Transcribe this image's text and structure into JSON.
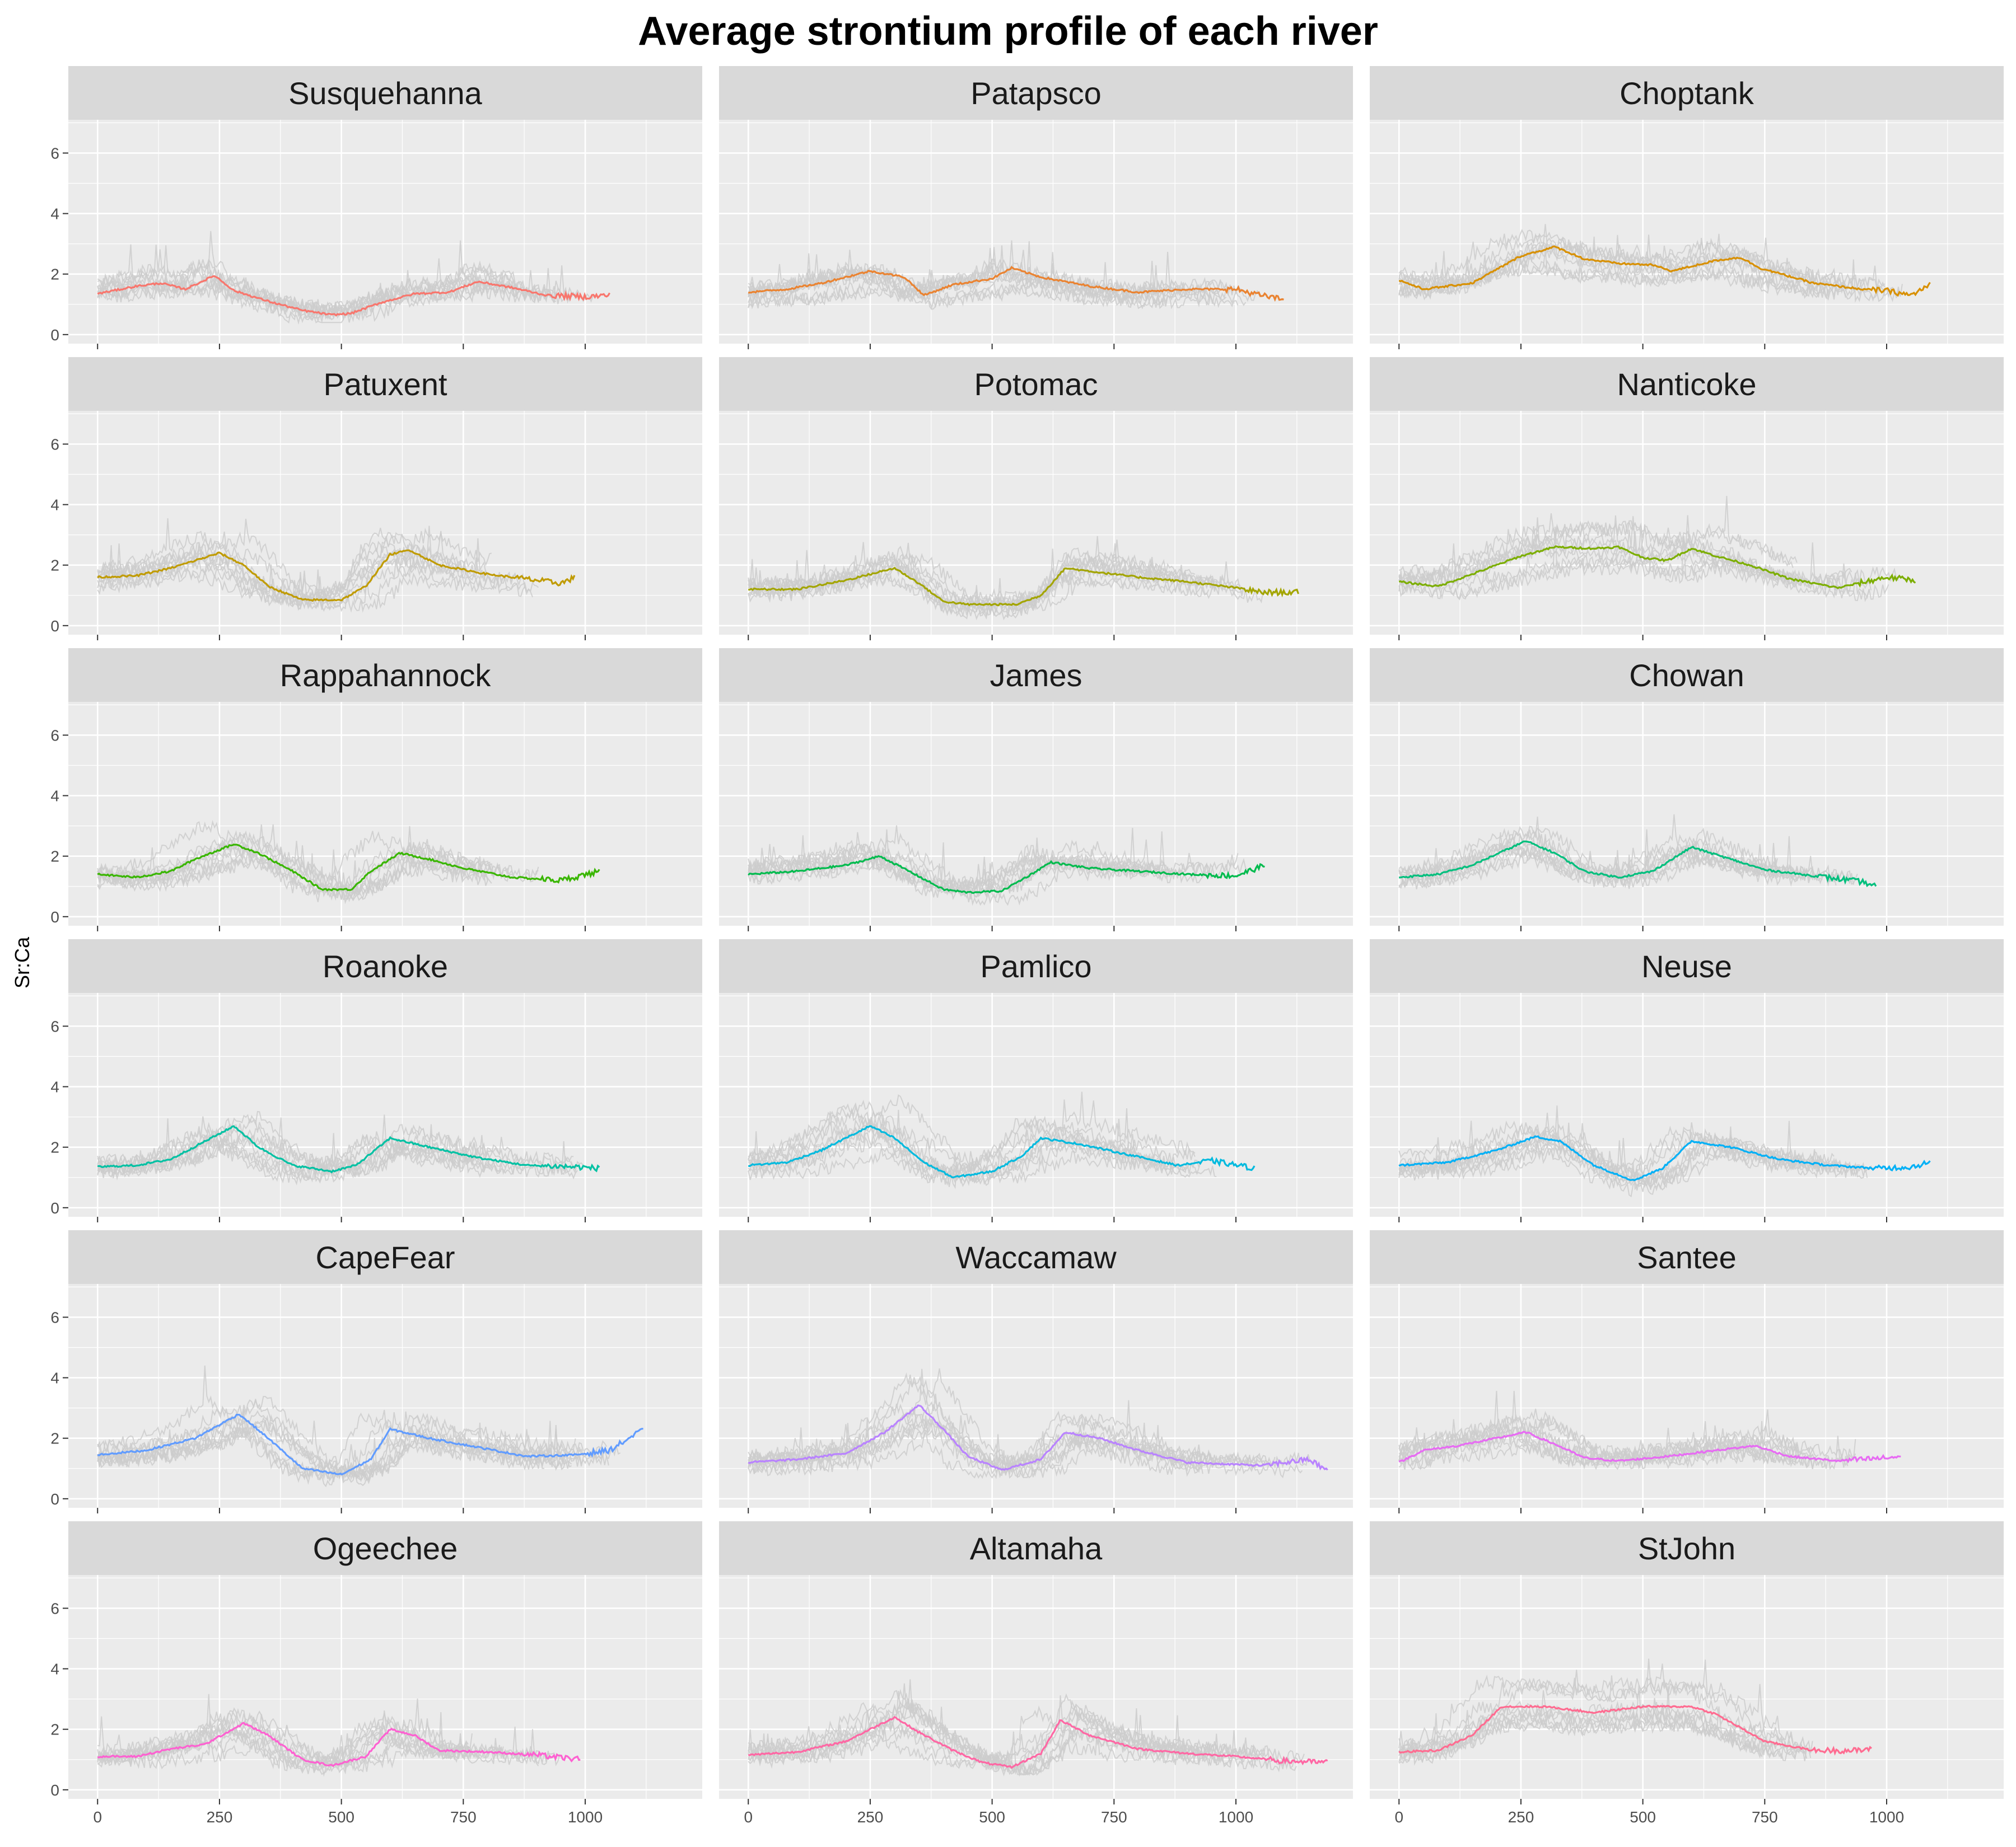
{
  "chart_data": {
    "type": "line",
    "title": "Average strontium profile of each river",
    "ylabel": "Sr:Ca",
    "xlabel": "",
    "xlim": [
      -60,
      1240
    ],
    "ylim": [
      -0.3,
      7.1
    ],
    "x_ticks": [
      0,
      250,
      500,
      750,
      1000
    ],
    "y_ticks": [
      0,
      2,
      4,
      6
    ],
    "grid": true,
    "background_series_color": "#cccccc",
    "panel_background": "#ebebeb",
    "strip_background": "#d9d9d9",
    "panels": [
      {
        "name": "Susquehanna",
        "color": "#F8766D",
        "xmax": 1050,
        "ymin": 0.4,
        "ymax": 3.5,
        "mean": [
          [
            0,
            1.35
          ],
          [
            80,
            1.6
          ],
          [
            130,
            1.7
          ],
          [
            180,
            1.5
          ],
          [
            240,
            1.95
          ],
          [
            280,
            1.45
          ],
          [
            350,
            1.1
          ],
          [
            420,
            0.8
          ],
          [
            480,
            0.65
          ],
          [
            520,
            0.7
          ],
          [
            580,
            1.05
          ],
          [
            650,
            1.35
          ],
          [
            720,
            1.4
          ],
          [
            780,
            1.75
          ],
          [
            850,
            1.55
          ],
          [
            920,
            1.3
          ],
          [
            1000,
            1.25
          ],
          [
            1050,
            1.3
          ]
        ]
      },
      {
        "name": "Patapsco",
        "color": "#EA8331",
        "xmax": 1100,
        "ymin": 0.6,
        "ymax": 3.5,
        "mean": [
          [
            0,
            1.4
          ],
          [
            80,
            1.5
          ],
          [
            150,
            1.7
          ],
          [
            250,
            2.1
          ],
          [
            320,
            1.9
          ],
          [
            360,
            1.3
          ],
          [
            420,
            1.65
          ],
          [
            500,
            1.85
          ],
          [
            540,
            2.2
          ],
          [
            600,
            1.9
          ],
          [
            700,
            1.6
          ],
          [
            800,
            1.4
          ],
          [
            900,
            1.5
          ],
          [
            1000,
            1.5
          ],
          [
            1050,
            1.3
          ],
          [
            1100,
            1.15
          ]
        ]
      },
      {
        "name": "Choptank",
        "color": "#D89000",
        "xmax": 1090,
        "ymin": 0.8,
        "ymax": 5.3,
        "mean": [
          [
            0,
            1.8
          ],
          [
            50,
            1.5
          ],
          [
            150,
            1.7
          ],
          [
            250,
            2.6
          ],
          [
            320,
            2.9
          ],
          [
            380,
            2.5
          ],
          [
            450,
            2.35
          ],
          [
            520,
            2.3
          ],
          [
            560,
            2.1
          ],
          [
            650,
            2.45
          ],
          [
            700,
            2.55
          ],
          [
            740,
            2.2
          ],
          [
            850,
            1.7
          ],
          [
            950,
            1.5
          ],
          [
            1000,
            1.45
          ],
          [
            1050,
            1.3
          ],
          [
            1090,
            1.65
          ]
        ]
      },
      {
        "name": "Patuxent",
        "color": "#C09B00",
        "xmax": 980,
        "ymin": 0.5,
        "ymax": 3.9,
        "mean": [
          [
            0,
            1.6
          ],
          [
            80,
            1.65
          ],
          [
            150,
            1.9
          ],
          [
            250,
            2.4
          ],
          [
            300,
            2.0
          ],
          [
            350,
            1.3
          ],
          [
            420,
            0.85
          ],
          [
            500,
            0.85
          ],
          [
            550,
            1.3
          ],
          [
            600,
            2.35
          ],
          [
            640,
            2.5
          ],
          [
            700,
            2.0
          ],
          [
            800,
            1.7
          ],
          [
            900,
            1.5
          ],
          [
            950,
            1.4
          ],
          [
            980,
            1.6
          ]
        ]
      },
      {
        "name": "Potomac",
        "color": "#A3A500",
        "xmax": 1130,
        "ymin": 0.05,
        "ymax": 3.8,
        "mean": [
          [
            0,
            1.2
          ],
          [
            100,
            1.2
          ],
          [
            200,
            1.5
          ],
          [
            300,
            1.9
          ],
          [
            350,
            1.4
          ],
          [
            400,
            0.8
          ],
          [
            450,
            0.7
          ],
          [
            550,
            0.7
          ],
          [
            600,
            1.0
          ],
          [
            650,
            1.9
          ],
          [
            700,
            1.8
          ],
          [
            800,
            1.6
          ],
          [
            900,
            1.45
          ],
          [
            1000,
            1.25
          ],
          [
            1050,
            1.1
          ],
          [
            1130,
            1.1
          ]
        ]
      },
      {
        "name": "Nanticoke",
        "color": "#7CAE00",
        "xmax": 1060,
        "ymin": 0.7,
        "ymax": 5.0,
        "mean": [
          [
            0,
            1.45
          ],
          [
            80,
            1.3
          ],
          [
            150,
            1.7
          ],
          [
            250,
            2.3
          ],
          [
            320,
            2.6
          ],
          [
            400,
            2.55
          ],
          [
            450,
            2.6
          ],
          [
            500,
            2.25
          ],
          [
            550,
            2.15
          ],
          [
            600,
            2.55
          ],
          [
            650,
            2.3
          ],
          [
            720,
            2.0
          ],
          [
            800,
            1.55
          ],
          [
            900,
            1.25
          ],
          [
            1000,
            1.6
          ],
          [
            1060,
            1.5
          ]
        ]
      },
      {
        "name": "Rappahannock",
        "color": "#39B600",
        "xmax": 1030,
        "ymin": 0.4,
        "ymax": 5.0,
        "mean": [
          [
            0,
            1.4
          ],
          [
            80,
            1.3
          ],
          [
            150,
            1.5
          ],
          [
            200,
            1.9
          ],
          [
            280,
            2.4
          ],
          [
            330,
            2.1
          ],
          [
            400,
            1.5
          ],
          [
            460,
            0.9
          ],
          [
            520,
            0.9
          ],
          [
            560,
            1.5
          ],
          [
            620,
            2.1
          ],
          [
            680,
            1.9
          ],
          [
            750,
            1.6
          ],
          [
            850,
            1.3
          ],
          [
            950,
            1.2
          ],
          [
            1030,
            1.5
          ]
        ]
      },
      {
        "name": "James",
        "color": "#00BB4E",
        "xmax": 1060,
        "ymin": 0.4,
        "ymax": 3.6,
        "mean": [
          [
            0,
            1.4
          ],
          [
            100,
            1.5
          ],
          [
            200,
            1.7
          ],
          [
            270,
            2.0
          ],
          [
            330,
            1.5
          ],
          [
            400,
            0.9
          ],
          [
            450,
            0.8
          ],
          [
            520,
            0.85
          ],
          [
            580,
            1.4
          ],
          [
            620,
            1.8
          ],
          [
            700,
            1.6
          ],
          [
            800,
            1.5
          ],
          [
            900,
            1.4
          ],
          [
            1000,
            1.35
          ],
          [
            1060,
            1.7
          ]
        ]
      },
      {
        "name": "Chowan",
        "color": "#00BF7D",
        "xmax": 980,
        "ymin": 0.5,
        "ymax": 4.7,
        "mean": [
          [
            0,
            1.3
          ],
          [
            80,
            1.4
          ],
          [
            150,
            1.7
          ],
          [
            260,
            2.5
          ],
          [
            320,
            2.1
          ],
          [
            380,
            1.5
          ],
          [
            450,
            1.3
          ],
          [
            520,
            1.5
          ],
          [
            600,
            2.3
          ],
          [
            660,
            2.0
          ],
          [
            750,
            1.55
          ],
          [
            850,
            1.35
          ],
          [
            950,
            1.15
          ],
          [
            980,
            1.0
          ]
        ]
      },
      {
        "name": "Roanoke",
        "color": "#00C1A3",
        "xmax": 1030,
        "ymin": 0.6,
        "ymax": 4.2,
        "mean": [
          [
            0,
            1.35
          ],
          [
            80,
            1.4
          ],
          [
            150,
            1.6
          ],
          [
            280,
            2.7
          ],
          [
            330,
            2.0
          ],
          [
            400,
            1.4
          ],
          [
            480,
            1.2
          ],
          [
            530,
            1.4
          ],
          [
            600,
            2.3
          ],
          [
            680,
            2.0
          ],
          [
            780,
            1.65
          ],
          [
            880,
            1.4
          ],
          [
            980,
            1.35
          ],
          [
            1030,
            1.3
          ]
        ]
      },
      {
        "name": "Pamlico",
        "color": "#00BADE",
        "xmax": 1040,
        "ymin": 0.5,
        "ymax": 5.7,
        "mean": [
          [
            0,
            1.4
          ],
          [
            80,
            1.5
          ],
          [
            150,
            1.9
          ],
          [
            250,
            2.7
          ],
          [
            300,
            2.3
          ],
          [
            360,
            1.5
          ],
          [
            420,
            1.0
          ],
          [
            500,
            1.2
          ],
          [
            560,
            1.7
          ],
          [
            600,
            2.3
          ],
          [
            680,
            2.1
          ],
          [
            780,
            1.75
          ],
          [
            880,
            1.4
          ],
          [
            950,
            1.55
          ],
          [
            1040,
            1.3
          ]
        ]
      },
      {
        "name": "Neuse",
        "color": "#00B0F6",
        "xmax": 1090,
        "ymin": 0.3,
        "ymax": 4.8,
        "mean": [
          [
            0,
            1.4
          ],
          [
            100,
            1.5
          ],
          [
            200,
            1.9
          ],
          [
            280,
            2.35
          ],
          [
            330,
            2.2
          ],
          [
            400,
            1.4
          ],
          [
            480,
            0.9
          ],
          [
            540,
            1.3
          ],
          [
            600,
            2.2
          ],
          [
            680,
            2.0
          ],
          [
            780,
            1.6
          ],
          [
            880,
            1.4
          ],
          [
            980,
            1.3
          ],
          [
            1050,
            1.35
          ],
          [
            1090,
            1.5
          ]
        ]
      },
      {
        "name": "CapeFear",
        "color": "#619CFF",
        "xmax": 1120,
        "ymin": 0.3,
        "ymax": 4.5,
        "mean": [
          [
            0,
            1.45
          ],
          [
            100,
            1.6
          ],
          [
            200,
            2.0
          ],
          [
            290,
            2.8
          ],
          [
            350,
            2.0
          ],
          [
            420,
            1.0
          ],
          [
            500,
            0.8
          ],
          [
            560,
            1.3
          ],
          [
            600,
            2.3
          ],
          [
            680,
            2.0
          ],
          [
            780,
            1.7
          ],
          [
            880,
            1.4
          ],
          [
            980,
            1.45
          ],
          [
            1050,
            1.6
          ],
          [
            1120,
            2.3
          ]
        ]
      },
      {
        "name": "Waccamaw",
        "color": "#B983FF",
        "xmax": 1190,
        "ymin": 0.7,
        "ymax": 5.0,
        "mean": [
          [
            0,
            1.2
          ],
          [
            100,
            1.3
          ],
          [
            200,
            1.5
          ],
          [
            280,
            2.2
          ],
          [
            350,
            3.1
          ],
          [
            400,
            2.3
          ],
          [
            450,
            1.4
          ],
          [
            520,
            0.95
          ],
          [
            600,
            1.3
          ],
          [
            650,
            2.2
          ],
          [
            720,
            2.0
          ],
          [
            800,
            1.6
          ],
          [
            900,
            1.2
          ],
          [
            1050,
            1.1
          ],
          [
            1150,
            1.3
          ],
          [
            1190,
            0.9
          ]
        ]
      },
      {
        "name": "Santee",
        "color": "#E76BF3",
        "xmax": 1030,
        "ymin": 0.1,
        "ymax": 4.6,
        "mean": [
          [
            0,
            1.2
          ],
          [
            50,
            1.6
          ],
          [
            120,
            1.75
          ],
          [
            200,
            2.0
          ],
          [
            260,
            2.2
          ],
          [
            320,
            1.8
          ],
          [
            380,
            1.35
          ],
          [
            450,
            1.25
          ],
          [
            550,
            1.4
          ],
          [
            650,
            1.6
          ],
          [
            730,
            1.75
          ],
          [
            800,
            1.4
          ],
          [
            900,
            1.25
          ],
          [
            1000,
            1.35
          ],
          [
            1030,
            1.4
          ]
        ]
      },
      {
        "name": "Ogeechee",
        "color": "#FD61D1",
        "xmax": 990,
        "ymin": 0.5,
        "ymax": 4.9,
        "mean": [
          [
            0,
            1.1
          ],
          [
            80,
            1.1
          ],
          [
            150,
            1.35
          ],
          [
            220,
            1.5
          ],
          [
            300,
            2.2
          ],
          [
            350,
            1.8
          ],
          [
            420,
            1.0
          ],
          [
            480,
            0.8
          ],
          [
            550,
            1.1
          ],
          [
            600,
            2.0
          ],
          [
            650,
            1.8
          ],
          [
            700,
            1.3
          ],
          [
            800,
            1.25
          ],
          [
            900,
            1.15
          ],
          [
            990,
            1.0
          ]
        ]
      },
      {
        "name": "Altamaha",
        "color": "#FF67A4",
        "xmax": 1190,
        "ymin": 0.5,
        "ymax": 4.6,
        "mean": [
          [
            0,
            1.15
          ],
          [
            100,
            1.25
          ],
          [
            200,
            1.6
          ],
          [
            300,
            2.4
          ],
          [
            350,
            1.9
          ],
          [
            420,
            1.3
          ],
          [
            480,
            0.9
          ],
          [
            540,
            0.75
          ],
          [
            600,
            1.2
          ],
          [
            640,
            2.3
          ],
          [
            700,
            1.8
          ],
          [
            800,
            1.35
          ],
          [
            900,
            1.2
          ],
          [
            1000,
            1.1
          ],
          [
            1100,
            0.95
          ],
          [
            1190,
            0.9
          ]
        ]
      },
      {
        "name": "StJohn",
        "color": "#FF6C91",
        "xmax": 970,
        "ymin": 0.3,
        "ymax": 5.2,
        "mean": [
          [
            0,
            1.25
          ],
          [
            80,
            1.3
          ],
          [
            150,
            1.8
          ],
          [
            210,
            2.75
          ],
          [
            300,
            2.75
          ],
          [
            400,
            2.55
          ],
          [
            500,
            2.75
          ],
          [
            600,
            2.75
          ],
          [
            650,
            2.5
          ],
          [
            750,
            1.6
          ],
          [
            850,
            1.3
          ],
          [
            950,
            1.3
          ],
          [
            970,
            1.4
          ]
        ]
      }
    ]
  }
}
